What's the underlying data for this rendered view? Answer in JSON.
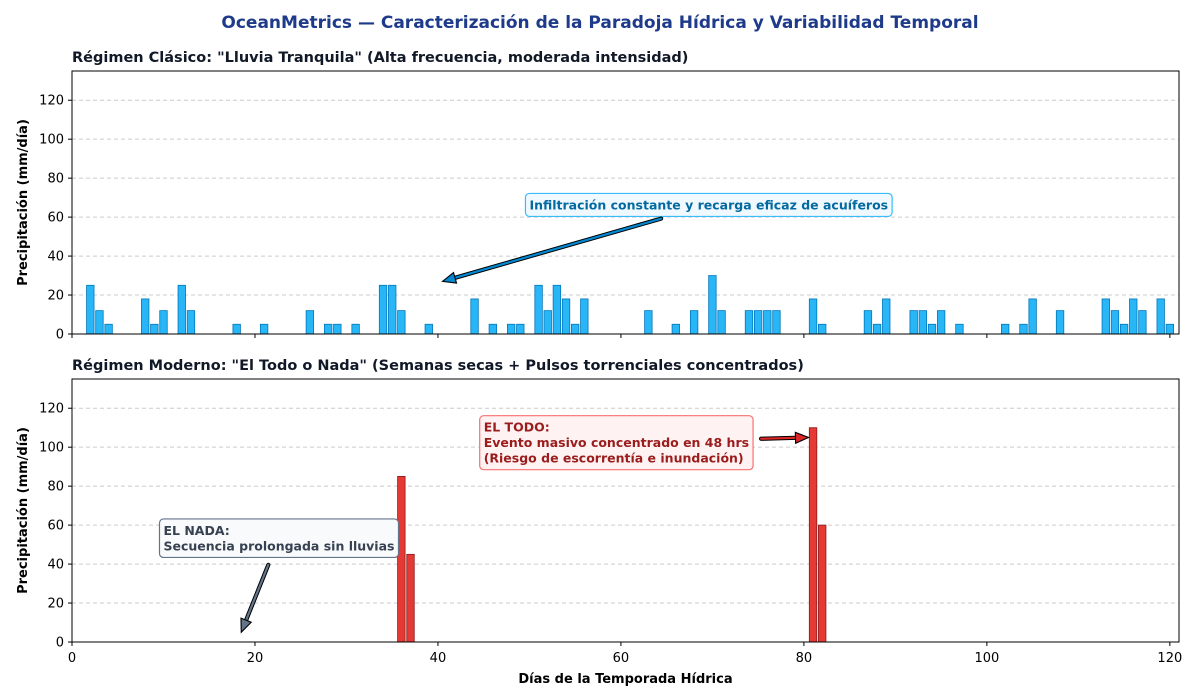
{
  "suptitle": "OceanMetrics — Caracterización de la Paradoja Hídrica y Variabilidad Temporal",
  "colors": {
    "suptitle": "#1e3a8a",
    "classic_bar": "#29b6f6",
    "classic_edge": "#0277bd",
    "modern_bar": "#e53935",
    "modern_edge": "#8b1a1a",
    "grid": "#cccccc"
  },
  "chart_data": [
    {
      "type": "bar",
      "title": "Régimen Clásico: \"Lluvia Tranquila\" (Alta frecuencia, moderada intensidad)",
      "ylabel": "Precipitación (mm/día)",
      "xlabel": "",
      "xlim": [
        0,
        121
      ],
      "ylim": [
        0,
        135
      ],
      "yticks": [
        0,
        20,
        40,
        60,
        80,
        100,
        120
      ],
      "xticks": [
        0,
        20,
        40,
        60,
        80,
        100,
        120
      ],
      "show_xticklabels": false,
      "grid": "y-dashed",
      "x": [
        2,
        3,
        4,
        8,
        9,
        10,
        12,
        13,
        18,
        21,
        26,
        28,
        29,
        31,
        34,
        35,
        36,
        39,
        44,
        46,
        48,
        49,
        51,
        52,
        53,
        54,
        55,
        56,
        63,
        66,
        68,
        70,
        71,
        74,
        75,
        76,
        77,
        81,
        82,
        87,
        88,
        89,
        92,
        93,
        94,
        95,
        97,
        102,
        104,
        105,
        108,
        113,
        114,
        115,
        116,
        117,
        119,
        120
      ],
      "values": [
        25,
        12,
        5,
        18,
        5,
        12,
        25,
        12,
        5,
        5,
        12,
        5,
        5,
        5,
        25,
        25,
        12,
        5,
        18,
        5,
        5,
        5,
        25,
        12,
        25,
        18,
        5,
        18,
        12,
        5,
        12,
        30,
        12,
        12,
        12,
        12,
        12,
        18,
        5,
        12,
        5,
        18,
        12,
        12,
        5,
        12,
        5,
        5,
        5,
        18,
        12,
        18,
        12,
        5,
        18,
        12,
        18,
        5
      ],
      "annotations": [
        {
          "text": "Infiltración constante y recarga eficaz de acuíferos",
          "x": 40.5,
          "y": 27,
          "text_x": 50,
          "text_y": 66
        }
      ]
    },
    {
      "type": "bar",
      "title": "Régimen Moderno: \"El Todo o Nada\" (Semanas secas + Pulsos torrenciales concentrados)",
      "ylabel": "Precipitación (mm/día)",
      "xlabel": "Días de la Temporada Hídrica",
      "xlim": [
        0,
        121
      ],
      "ylim": [
        0,
        135
      ],
      "yticks": [
        0,
        20,
        40,
        60,
        80,
        100,
        120
      ],
      "xticks": [
        0,
        20,
        40,
        60,
        80,
        100,
        120
      ],
      "show_xticklabels": true,
      "grid": "y-dashed",
      "x": [
        36,
        37,
        81,
        82
      ],
      "values": [
        85,
        45,
        110,
        60
      ],
      "annotations": [
        {
          "lines": [
            "EL NADA:",
            "Secuencia prolongada sin lluvias"
          ],
          "x": 18.5,
          "y": 5,
          "text_x": 10,
          "text_y": 57
        },
        {
          "lines": [
            "EL TODO:",
            "Evento masivo concentrado en 48 hrs",
            "(Riesgo de escorrentía e inundación)"
          ],
          "x": 80.5,
          "y": 105,
          "text_x": 45,
          "text_y": 110
        }
      ]
    }
  ]
}
